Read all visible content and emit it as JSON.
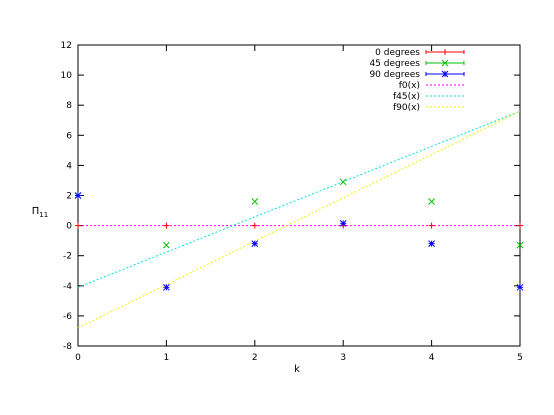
{
  "chart_data": {
    "type": "scatter",
    "xlabel": "k",
    "ylabel": "Π11",
    "ylabel_main": "Π",
    "ylabel_sub": "11",
    "xlim": [
      0,
      5
    ],
    "ylim": [
      -8,
      12
    ],
    "xticks": [
      0,
      1,
      2,
      3,
      4,
      5
    ],
    "yticks": [
      -8,
      -6,
      -4,
      -2,
      0,
      2,
      4,
      6,
      8,
      10,
      12
    ],
    "grid": false,
    "legend_position": "top-right",
    "series": [
      {
        "name": "0 degrees",
        "kind": "points",
        "marker": "plus",
        "color": "#ff0000",
        "x": [
          0,
          1,
          2,
          3,
          4,
          5
        ],
        "y": [
          0,
          0,
          0,
          0,
          0,
          0
        ]
      },
      {
        "name": "45 degrees",
        "kind": "points",
        "marker": "cross",
        "color": "#00c000",
        "x": [
          0,
          1,
          2,
          3,
          4,
          5
        ],
        "y": [
          2,
          -1.3,
          1.6,
          2.9,
          1.6,
          -1.3
        ]
      },
      {
        "name": "90 degrees",
        "kind": "points",
        "marker": "star",
        "color": "#0000ff",
        "x": [
          0,
          1,
          2,
          3,
          4,
          5
        ],
        "y": [
          2,
          -4.1,
          -1.2,
          0.15,
          -1.2,
          -4.1
        ]
      },
      {
        "name": "f0(x)",
        "kind": "line",
        "color": "#ff00ff",
        "x": [
          0,
          5
        ],
        "y": [
          0,
          0
        ]
      },
      {
        "name": "f45(x)",
        "kind": "line",
        "color": "#00e0e0",
        "x": [
          0,
          5
        ],
        "y": [
          -4.1,
          7.6
        ]
      },
      {
        "name": "f90(x)",
        "kind": "line",
        "color": "#f0f000",
        "x": [
          0,
          5
        ],
        "y": [
          -6.8,
          7.6
        ]
      }
    ]
  }
}
